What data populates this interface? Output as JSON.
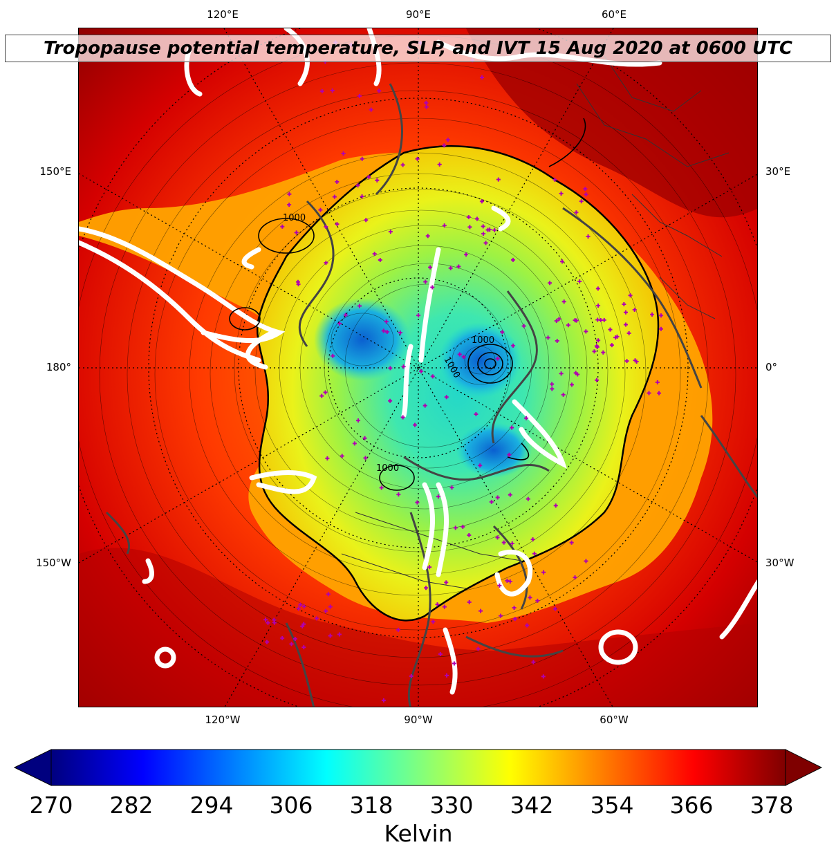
{
  "title": "Tropopause potential temperature, SLP, and IVT 15 Aug 2020 at 0600 UTC",
  "map": {
    "projection": "north-polar-stereographic",
    "field": "tropopause-potential-temperature",
    "overlays": [
      "slp-contours",
      "ivt-contours",
      "coastlines",
      "country-borders",
      "station-markers"
    ],
    "top_ticks": [
      "120°E",
      "90°E",
      "60°E"
    ],
    "bottom_ticks": [
      "120°W",
      "90°W",
      "60°W"
    ],
    "left_ticks": [
      "150°E",
      "180°",
      "150°W"
    ],
    "right_ticks": [
      "30°E",
      "0°",
      "30°W"
    ],
    "slp_labels": [
      "1000",
      "1000",
      "1000",
      "1000"
    ],
    "marker_color": "#b000b0",
    "ivt_color": "#ffffff"
  },
  "colorbar": {
    "ticks": [
      "270",
      "282",
      "294",
      "306",
      "318",
      "330",
      "342",
      "354",
      "366",
      "378"
    ],
    "label": "Kelvin",
    "range": [
      270,
      378
    ],
    "colormap": "jet",
    "extend": "both",
    "colors": [
      "#00007f",
      "#0000ff",
      "#007fff",
      "#00ffff",
      "#7fff7f",
      "#ffff00",
      "#ff7f00",
      "#ff0000",
      "#7f0000"
    ]
  }
}
